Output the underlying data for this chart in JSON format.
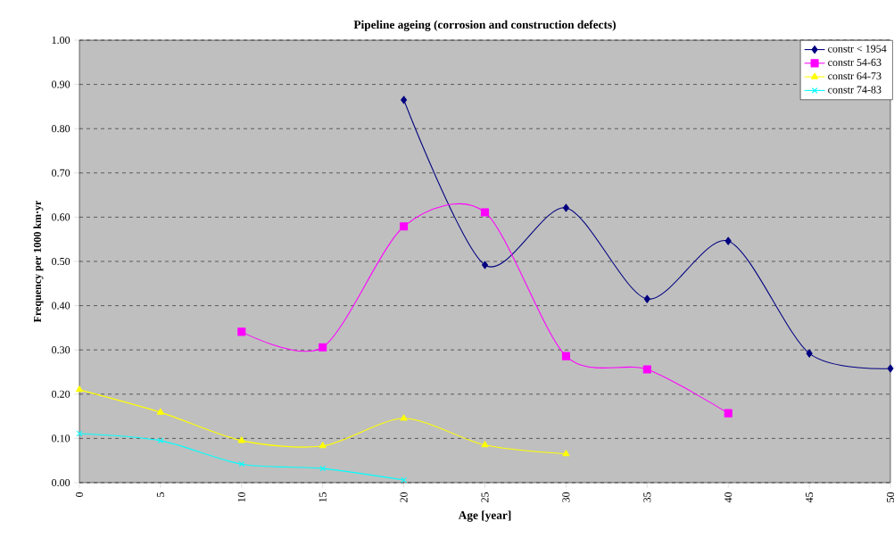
{
  "chart_data": {
    "type": "line",
    "title": "Pipeline ageing (corrosion and construction defects)",
    "xlabel": "Age [year]",
    "ylabel": "Frequency per 1000 km·yr",
    "xlim": [
      0,
      50
    ],
    "xticks": [
      0,
      5,
      10,
      15,
      20,
      25,
      30,
      35,
      40,
      45,
      50
    ],
    "ylim": [
      0,
      1
    ],
    "yticks": [
      {
        "value": 0,
        "label": "0.00"
      },
      {
        "value": 0.1,
        "label": "0.10"
      },
      {
        "value": 0.2,
        "label": "0.20"
      },
      {
        "value": 0.3,
        "label": "0.30"
      },
      {
        "value": 0.4,
        "label": "0.40"
      },
      {
        "value": 0.5,
        "label": "0.50"
      },
      {
        "value": 0.6,
        "label": "0.60"
      },
      {
        "value": 0.7,
        "label": "0.70"
      },
      {
        "value": 0.8,
        "label": "0.80"
      },
      {
        "value": 0.9,
        "label": "0.90"
      },
      {
        "value": 1,
        "label": "1.00"
      }
    ],
    "grid": "y",
    "legend": "top right",
    "line_style": "solid",
    "series": [
      {
        "name": "constr < 1954",
        "color": "#000080",
        "marker": "diamond",
        "x": [
          20,
          25,
          30,
          35,
          40,
          45,
          50
        ],
        "values": [
          0.865,
          0.492,
          0.621,
          0.415,
          0.546,
          0.292,
          0.258
        ]
      },
      {
        "name": "constr 54-63",
        "color": "#ff00ff",
        "marker": "square",
        "x": [
          10,
          15,
          20,
          25,
          30,
          35,
          40
        ],
        "values": [
          0.341,
          0.306,
          0.579,
          0.611,
          0.286,
          0.256,
          0.157
        ]
      },
      {
        "name": "constr 64-73",
        "color": "#ffff00",
        "marker": "triangle",
        "x": [
          0,
          5,
          10,
          15,
          20,
          25,
          30
        ],
        "values": [
          0.21,
          0.159,
          0.095,
          0.083,
          0.145,
          0.085,
          0.065
        ]
      },
      {
        "name": "constr 74-83",
        "color": "#00ffff",
        "marker": "cross",
        "x": [
          0,
          5,
          10,
          15,
          20
        ],
        "values": [
          0.111,
          0.095,
          0.042,
          0.032,
          0.006
        ]
      }
    ]
  }
}
